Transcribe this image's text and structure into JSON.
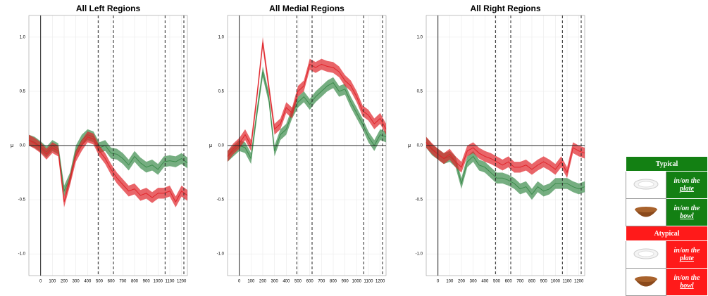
{
  "chart_data": [
    {
      "type": "line",
      "title": "All Left Regions",
      "ylabel": "μ",
      "x": [
        -100,
        -50,
        0,
        50,
        100,
        150,
        200,
        250,
        300,
        350,
        400,
        450,
        500,
        550,
        600,
        650,
        700,
        750,
        800,
        850,
        900,
        950,
        1000,
        1050,
        1100,
        1150,
        1200,
        1250
      ],
      "series": [
        {
          "color": "#3c8c4c",
          "error": 0.05,
          "values": [
            0.05,
            0.03,
            -0.01,
            -0.06,
            0.0,
            -0.03,
            -0.42,
            -0.3,
            -0.05,
            0.05,
            0.1,
            0.08,
            -0.02,
            0.0,
            -0.07,
            -0.08,
            -0.12,
            -0.18,
            -0.1,
            -0.16,
            -0.2,
            -0.18,
            -0.22,
            -0.15,
            -0.14,
            -0.15,
            -0.12,
            -0.16
          ]
        },
        {
          "color": "#e0242a",
          "error": 0.05,
          "values": [
            0.05,
            0.02,
            -0.02,
            -0.08,
            -0.02,
            -0.05,
            -0.52,
            -0.32,
            -0.1,
            0.0,
            0.08,
            0.06,
            -0.05,
            -0.12,
            -0.22,
            -0.3,
            -0.36,
            -0.42,
            -0.4,
            -0.46,
            -0.44,
            -0.48,
            -0.44,
            -0.44,
            -0.42,
            -0.52,
            -0.42,
            -0.46
          ]
        }
      ],
      "xlim": [
        -100,
        1250
      ],
      "ylim": [
        -1.2,
        1.2
      ],
      "xticks": [
        0,
        100,
        200,
        300,
        400,
        500,
        600,
        700,
        800,
        900,
        1000,
        1100,
        1200
      ],
      "yticks": [
        {
          "value": -1,
          "label": "-1.0"
        },
        -0.5,
        {
          "value": 0,
          "label": "0.0"
        },
        0.5,
        {
          "value": 1,
          "label": "1.0"
        }
      ],
      "vlines": [
        490,
        620,
        1060,
        1220
      ],
      "grid": true
    },
    {
      "type": "line",
      "title": "All Medial Regions",
      "ylabel": "μ",
      "x": [
        -100,
        -50,
        0,
        50,
        100,
        150,
        200,
        250,
        300,
        350,
        400,
        450,
        500,
        550,
        600,
        650,
        700,
        750,
        800,
        850,
        900,
        950,
        1000,
        1050,
        1100,
        1150,
        1200,
        1250
      ],
      "series": [
        {
          "color": "#3c8c4c",
          "error": 0.05,
          "values": [
            -0.1,
            -0.05,
            0.0,
            -0.02,
            -0.12,
            0.3,
            0.68,
            0.45,
            -0.05,
            0.1,
            0.15,
            0.3,
            0.4,
            0.45,
            0.38,
            0.45,
            0.5,
            0.55,
            0.58,
            0.5,
            0.52,
            0.4,
            0.3,
            0.2,
            0.08,
            0.0,
            0.1,
            0.08
          ]
        },
        {
          "color": "#e0242a",
          "error": 0.05,
          "values": [
            -0.1,
            -0.03,
            0.02,
            0.1,
            0.0,
            0.45,
            0.95,
            0.55,
            0.15,
            0.2,
            0.35,
            0.3,
            0.5,
            0.55,
            0.75,
            0.72,
            0.75,
            0.73,
            0.72,
            0.68,
            0.6,
            0.55,
            0.45,
            0.32,
            0.28,
            0.2,
            0.25,
            0.15
          ]
        }
      ],
      "xlim": [
        -100,
        1250
      ],
      "ylim": [
        -1.2,
        1.2
      ],
      "xticks": [
        0,
        100,
        200,
        300,
        400,
        500,
        600,
        700,
        800,
        900,
        1000,
        1100,
        1200
      ],
      "yticks": [
        {
          "value": -1,
          "label": "-1.0"
        },
        -0.5,
        {
          "value": 0,
          "label": "0.0"
        },
        0.5,
        {
          "value": 1,
          "label": "1.0"
        }
      ],
      "vlines": [
        490,
        620,
        1060,
        1220
      ],
      "grid": true
    },
    {
      "type": "line",
      "title": "All Right Regions",
      "ylabel": "μ",
      "x": [
        -100,
        -50,
        0,
        50,
        100,
        150,
        200,
        250,
        300,
        350,
        400,
        450,
        500,
        550,
        600,
        650,
        700,
        750,
        800,
        850,
        900,
        950,
        1000,
        1050,
        1100,
        1150,
        1200,
        1250
      ],
      "series": [
        {
          "color": "#3c8c4c",
          "error": 0.05,
          "values": [
            0.03,
            -0.04,
            -0.08,
            -0.12,
            -0.1,
            -0.15,
            -0.35,
            -0.15,
            -0.1,
            -0.18,
            -0.2,
            -0.25,
            -0.3,
            -0.3,
            -0.32,
            -0.35,
            -0.4,
            -0.38,
            -0.45,
            -0.38,
            -0.42,
            -0.4,
            -0.35,
            -0.35,
            -0.35,
            -0.38,
            -0.4,
            -0.38
          ]
        },
        {
          "color": "#e0242a",
          "error": 0.05,
          "values": [
            0.03,
            -0.03,
            -0.08,
            -0.12,
            -0.08,
            -0.15,
            -0.2,
            -0.05,
            -0.02,
            -0.07,
            -0.1,
            -0.12,
            -0.15,
            -0.18,
            -0.15,
            -0.2,
            -0.2,
            -0.18,
            -0.22,
            -0.18,
            -0.15,
            -0.18,
            -0.22,
            -0.15,
            -0.25,
            -0.02,
            -0.05,
            -0.07
          ]
        }
      ],
      "xlim": [
        -100,
        1250
      ],
      "ylim": [
        -1.2,
        1.2
      ],
      "xticks": [
        0,
        100,
        200,
        300,
        400,
        500,
        600,
        700,
        800,
        900,
        1000,
        1100,
        1200
      ],
      "yticks": [
        {
          "value": -1,
          "label": "-1.0"
        },
        -0.5,
        {
          "value": 0,
          "label": "0.0"
        },
        0.5,
        {
          "value": 1,
          "label": "1.0"
        }
      ],
      "vlines": [
        490,
        620,
        1060,
        1220
      ],
      "grid": true
    }
  ],
  "legend_table": {
    "groups": [
      {
        "title": "Typical",
        "color": "#138013",
        "rows": [
          {
            "prefix": "in/on the",
            "object": "plate"
          },
          {
            "prefix": "in/on the",
            "object": "bowl"
          }
        ]
      },
      {
        "title": "Atypical",
        "color": "#ff1a1a",
        "rows": [
          {
            "prefix": "in/on the",
            "object": "plate"
          },
          {
            "prefix": "in/on the",
            "object": "bowl"
          }
        ]
      }
    ]
  }
}
